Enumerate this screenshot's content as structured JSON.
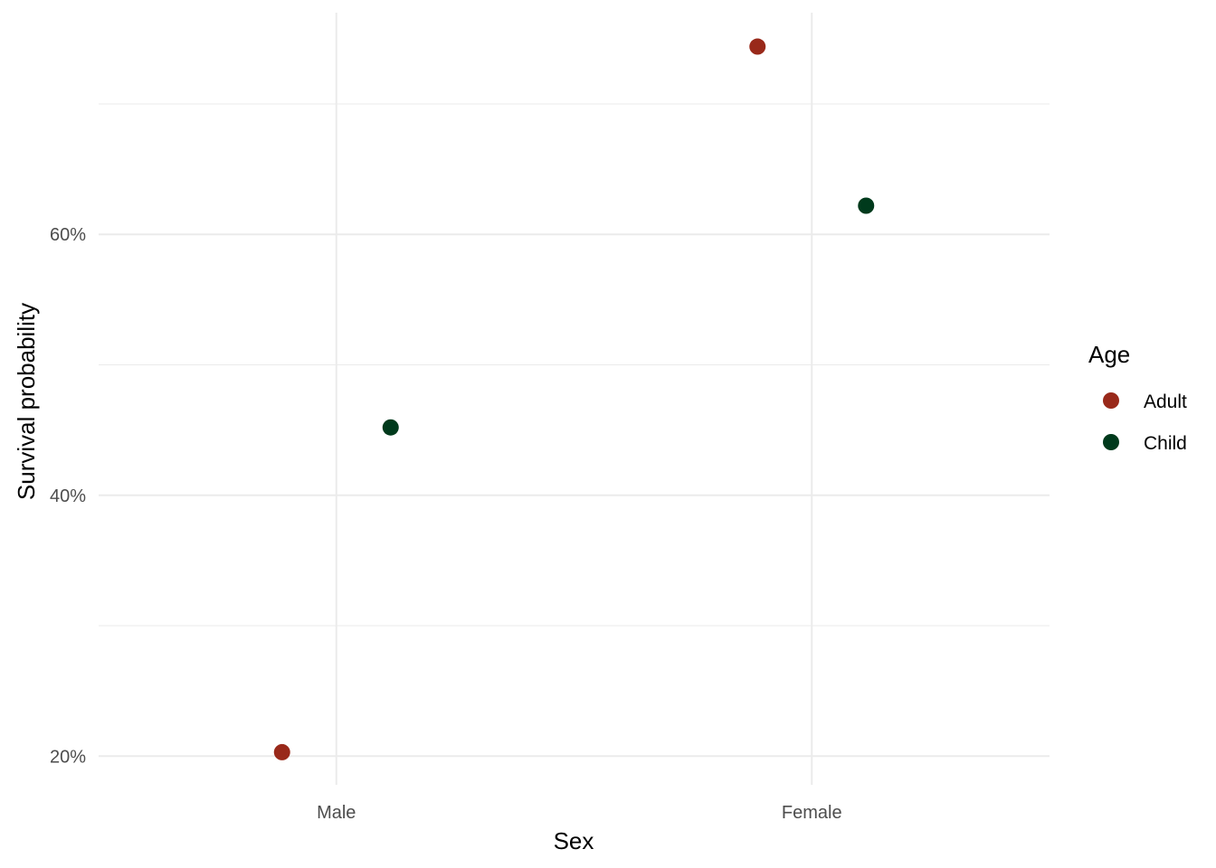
{
  "chart_data": {
    "type": "scatter",
    "title": "",
    "xlabel": "Sex",
    "ylabel": "Survival probability",
    "categories": [
      "Male",
      "Female"
    ],
    "y_ticks": [
      0.2,
      0.4,
      0.6
    ],
    "y_tick_labels": [
      "20%",
      "40%",
      "60%"
    ],
    "ylim": [
      0.178,
      0.77
    ],
    "grid": true,
    "legend": {
      "title": "Age",
      "placement": "right"
    },
    "series": [
      {
        "name": "Adult",
        "color": "#99291a",
        "values": [
          0.203,
          0.744
        ]
      },
      {
        "name": "Child",
        "color": "#003a1c",
        "values": [
          0.452,
          0.622
        ]
      }
    ]
  }
}
